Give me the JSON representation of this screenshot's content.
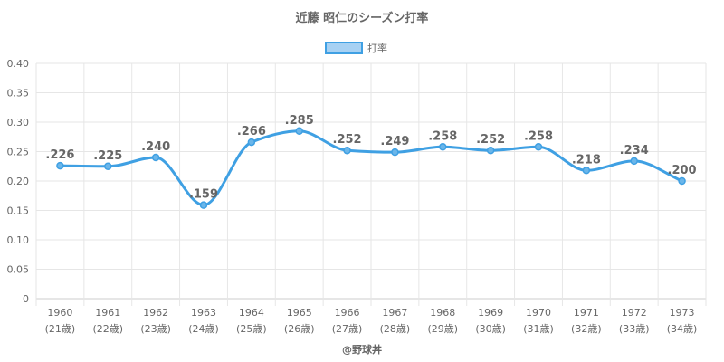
{
  "chart_data": {
    "type": "line",
    "title": "近藤 昭仁のシーズン打率",
    "legend": {
      "label": "打率",
      "position": "top-center"
    },
    "series": [
      {
        "name": "打率",
        "values": [
          0.226,
          0.225,
          0.24,
          0.159,
          0.266,
          0.285,
          0.252,
          0.249,
          0.258,
          0.252,
          0.258,
          0.218,
          0.234,
          0.2
        ],
        "data_labels": [
          ".226",
          ".225",
          ".240",
          ".159",
          ".266",
          ".285",
          ".252",
          ".249",
          ".258",
          ".252",
          ".258",
          ".218",
          ".234",
          ".200"
        ]
      }
    ],
    "categories": [
      "1960",
      "1961",
      "1962",
      "1963",
      "1964",
      "1965",
      "1966",
      "1967",
      "1968",
      "1969",
      "1970",
      "1971",
      "1972",
      "1973"
    ],
    "category_sublabels": [
      "(21歳)",
      "(22歳)",
      "(23歳)",
      "(24歳)",
      "(25歳)",
      "(26歳)",
      "(27歳)",
      "(28歳)",
      "(29歳)",
      "(30歳)",
      "(31歳)",
      "(32歳)",
      "(33歳)",
      "(34歳)"
    ],
    "yticks": [
      "0",
      "0.05",
      "0.10",
      "0.15",
      "0.20",
      "0.25",
      "0.30",
      "0.35",
      "0.40"
    ],
    "ylim": [
      0,
      0.4
    ],
    "grid": true,
    "colors": {
      "line": "#3fa0e3",
      "marker_fill": "#6bb6ea",
      "legend_fill": "#a7d1f3",
      "legend_stroke": "#3fa0e3",
      "grid": "#e6e6e6",
      "text": "#666666"
    }
  },
  "credit": "@野球丼"
}
